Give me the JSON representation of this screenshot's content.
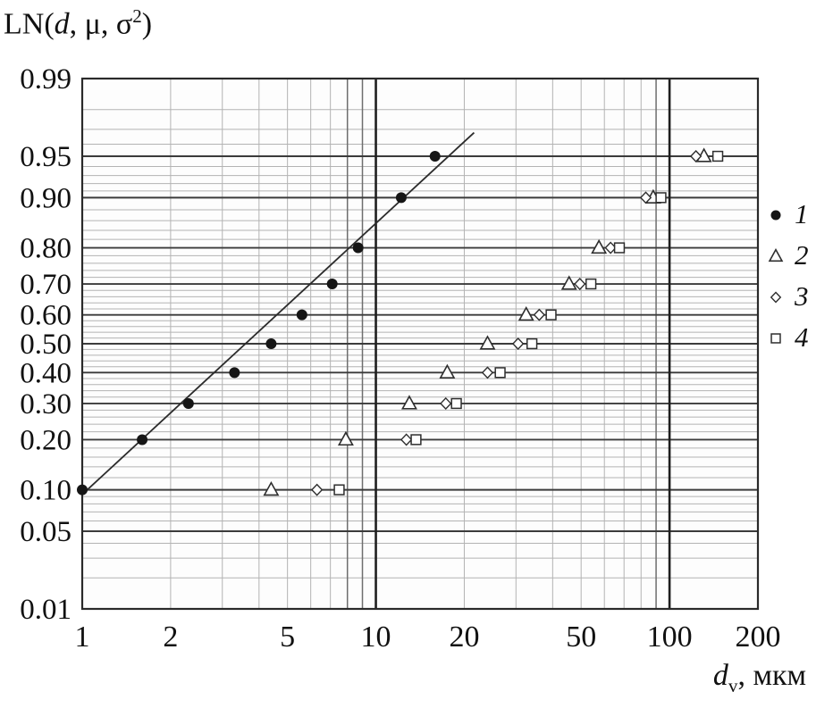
{
  "labels": {
    "y_title": {
      "prefix": "LN(",
      "var": "d",
      "mid": ", μ, σ",
      "sup": "2",
      "suffix": ")"
    },
    "x_title": {
      "var": "d",
      "sub": "v",
      "suffix": ", мкм"
    }
  },
  "chart_data": {
    "type": "scatter",
    "title": "",
    "xlabel": "dv, мкм",
    "ylabel": "LN(d, μ, σ2)",
    "x_scale": "log",
    "y_scale": "probit",
    "xlim": [
      1,
      200
    ],
    "ylim": [
      0.01,
      0.99
    ],
    "grid": true,
    "legend_position": "right-outside",
    "x_ticks": [
      {
        "v": 1,
        "label": "1"
      },
      {
        "v": 2,
        "label": "2"
      },
      {
        "v": 5,
        "label": "5"
      },
      {
        "v": 10,
        "label": "10"
      },
      {
        "v": 20,
        "label": "20"
      },
      {
        "v": 50,
        "label": "50"
      },
      {
        "v": 100,
        "label": "100"
      },
      {
        "v": 200,
        "label": "200"
      }
    ],
    "y_ticks": [
      {
        "v": 0.99,
        "label": "0.99"
      },
      {
        "v": 0.95,
        "label": "0.95"
      },
      {
        "v": 0.9,
        "label": "0.90"
      },
      {
        "v": 0.8,
        "label": "0.80"
      },
      {
        "v": 0.7,
        "label": "0.70"
      },
      {
        "v": 0.6,
        "label": "0.60"
      },
      {
        "v": 0.5,
        "label": "0.50"
      },
      {
        "v": 0.4,
        "label": "0.40"
      },
      {
        "v": 0.3,
        "label": "0.30"
      },
      {
        "v": 0.2,
        "label": "0.20"
      },
      {
        "v": 0.1,
        "label": "0.10"
      },
      {
        "v": 0.05,
        "label": "0.05"
      },
      {
        "v": 0.01,
        "label": "0.01"
      }
    ],
    "x_minor_gridlines": [
      2,
      3,
      4,
      5,
      6,
      7,
      20,
      30,
      40,
      50,
      60,
      70,
      80
    ],
    "x_medium_gridlines": [
      8,
      9,
      90
    ],
    "x_major_gridlines": [
      10,
      100
    ],
    "y_minor_gridlines": [
      0.02,
      0.03,
      0.04,
      0.06,
      0.07,
      0.08,
      0.09,
      0.12,
      0.14,
      0.16,
      0.18,
      0.22,
      0.24,
      0.26,
      0.28,
      0.32,
      0.34,
      0.36,
      0.38,
      0.42,
      0.44,
      0.46,
      0.48,
      0.52,
      0.54,
      0.56,
      0.58,
      0.62,
      0.64,
      0.66,
      0.68,
      0.72,
      0.74,
      0.76,
      0.78,
      0.82,
      0.84,
      0.86,
      0.88,
      0.91,
      0.92,
      0.93,
      0.94,
      0.96,
      0.97,
      0.98
    ],
    "series": [
      {
        "name": "1",
        "marker": "filled-circle",
        "fit_line": [
          [
            1.0,
            0.093
          ],
          [
            21.6,
            0.968
          ]
        ],
        "points": [
          [
            1.0,
            0.1
          ],
          [
            1.6,
            0.2
          ],
          [
            2.3,
            0.3
          ],
          [
            3.3,
            0.4
          ],
          [
            4.4,
            0.5
          ],
          [
            5.6,
            0.6
          ],
          [
            7.1,
            0.7
          ],
          [
            8.7,
            0.8
          ],
          [
            12.2,
            0.9
          ],
          [
            15.9,
            0.95
          ]
        ]
      },
      {
        "name": "2",
        "marker": "open-triangle",
        "points": [
          [
            4.4,
            0.1
          ],
          [
            7.9,
            0.2
          ],
          [
            13,
            0.3
          ],
          [
            17.5,
            0.4
          ],
          [
            24,
            0.5
          ],
          [
            32.5,
            0.6
          ],
          [
            45.5,
            0.7
          ],
          [
            57.5,
            0.8
          ],
          [
            88,
            0.9
          ],
          [
            131,
            0.95
          ]
        ]
      },
      {
        "name": "3",
        "marker": "open-diamond",
        "points": [
          [
            6.3,
            0.1
          ],
          [
            12.7,
            0.2
          ],
          [
            17.3,
            0.3
          ],
          [
            24,
            0.4
          ],
          [
            30.5,
            0.5
          ],
          [
            36,
            0.6
          ],
          [
            49.5,
            0.7
          ],
          [
            63,
            0.8
          ],
          [
            83,
            0.9
          ],
          [
            123,
            0.95
          ]
        ]
      },
      {
        "name": "4",
        "marker": "open-square",
        "points": [
          [
            7.5,
            0.1
          ],
          [
            13.7,
            0.2
          ],
          [
            18.8,
            0.3
          ],
          [
            26.5,
            0.4
          ],
          [
            34,
            0.5
          ],
          [
            39.5,
            0.6
          ],
          [
            54,
            0.7
          ],
          [
            67.5,
            0.8
          ],
          [
            93.5,
            0.9
          ],
          [
            146,
            0.95
          ]
        ]
      }
    ]
  }
}
